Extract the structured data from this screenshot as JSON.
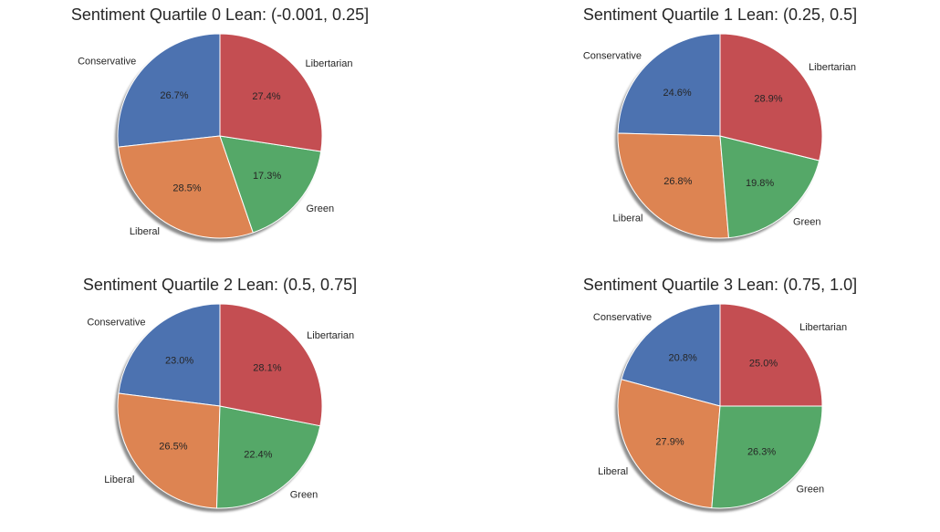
{
  "chart_data": [
    {
      "type": "pie",
      "title": "Sentiment Quartile 0 Lean: (-0.001, 0.25]",
      "labels": [
        "Conservative",
        "Liberal",
        "Green",
        "Libertarian"
      ],
      "values": [
        26.7,
        28.5,
        17.3,
        27.4
      ],
      "percent_labels": [
        "26.7%",
        "28.5%",
        "17.3%",
        "27.4%"
      ],
      "colors": [
        "#4c72b0",
        "#dd8452",
        "#55a868",
        "#c44e52"
      ],
      "start_angle_deg": 90,
      "direction": "counterclockwise",
      "shadow": true
    },
    {
      "type": "pie",
      "title": "Sentiment Quartile 1 Lean: (0.25, 0.5]",
      "labels": [
        "Conservative",
        "Liberal",
        "Green",
        "Libertarian"
      ],
      "values": [
        24.6,
        26.8,
        19.8,
        28.9
      ],
      "percent_labels": [
        "24.6%",
        "26.8%",
        "19.8%",
        "28.9%"
      ],
      "colors": [
        "#4c72b0",
        "#dd8452",
        "#55a868",
        "#c44e52"
      ],
      "start_angle_deg": 90,
      "direction": "counterclockwise",
      "shadow": true
    },
    {
      "type": "pie",
      "title": "Sentiment Quartile 2 Lean: (0.5, 0.75]",
      "labels": [
        "Conservative",
        "Liberal",
        "Green",
        "Libertarian"
      ],
      "values": [
        23.0,
        26.5,
        22.4,
        28.1
      ],
      "percent_labels": [
        "23.0%",
        "26.5%",
        "22.4%",
        "28.1%"
      ],
      "colors": [
        "#4c72b0",
        "#dd8452",
        "#55a868",
        "#c44e52"
      ],
      "start_angle_deg": 90,
      "direction": "counterclockwise",
      "shadow": true
    },
    {
      "type": "pie",
      "title": "Sentiment Quartile 3 Lean: (0.75, 1.0]",
      "labels": [
        "Conservative",
        "Liberal",
        "Green",
        "Libertarian"
      ],
      "values": [
        20.8,
        27.9,
        26.3,
        25.0
      ],
      "percent_labels": [
        "20.8%",
        "27.9%",
        "26.3%",
        "25.0%"
      ],
      "colors": [
        "#4c72b0",
        "#dd8452",
        "#55a868",
        "#c44e52"
      ],
      "start_angle_deg": 90,
      "direction": "counterclockwise",
      "shadow": true
    }
  ]
}
